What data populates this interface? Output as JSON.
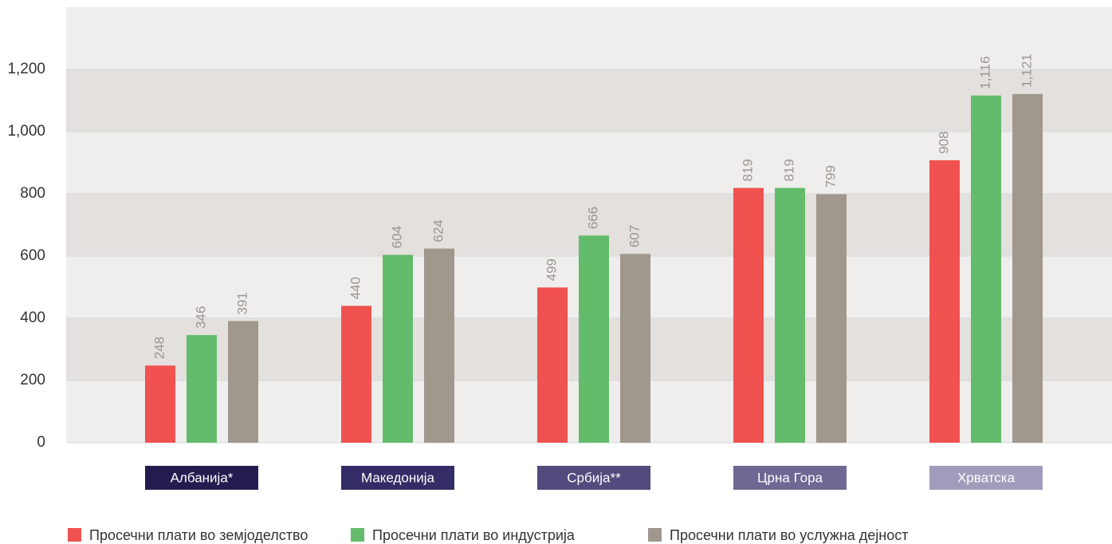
{
  "chart_data": {
    "type": "bar",
    "categories": [
      "Албанија*",
      "Македонија",
      "Србија**",
      "Црна Гора",
      "Хрватска"
    ],
    "category_colors": [
      "#241c4f",
      "#342c66",
      "#534a7d",
      "#6e6894",
      "#a19cbb"
    ],
    "series": [
      {
        "name": "Просечни плати во земјоделство",
        "color": "#f0524f",
        "values": [
          248,
          440,
          499,
          819,
          908
        ],
        "value_labels": [
          "248",
          "440",
          "499",
          "819",
          "908"
        ]
      },
      {
        "name": "Просечни плати во индустрија",
        "color": "#63bc6b",
        "values": [
          346,
          604,
          666,
          819,
          1116
        ],
        "value_labels": [
          "346",
          "604",
          "666",
          "819",
          "1,116"
        ]
      },
      {
        "name": "Просечни плати во услужна дејност",
        "color": "#a0978d",
        "values": [
          391,
          624,
          607,
          799,
          1121
        ],
        "value_labels": [
          "391",
          "624",
          "607",
          "799",
          "1,121"
        ]
      }
    ],
    "ylim": [
      0,
      1400
    ],
    "yticks": [
      0,
      200,
      400,
      600,
      800,
      {
        "value": 1000,
        "label": "1,000"
      },
      {
        "value": 1200,
        "label": "1,200"
      }
    ],
    "grid": true,
    "legend": "bottom"
  }
}
